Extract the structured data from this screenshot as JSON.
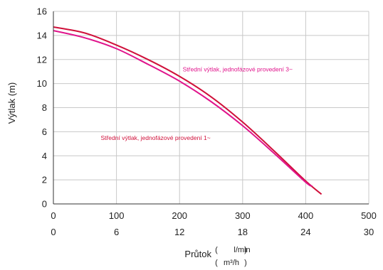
{
  "chart_data": {
    "type": "line",
    "title": "",
    "xlabel": "Průtok",
    "x_units": [
      "l/min",
      "m³/h"
    ],
    "ylabel": "Výtlak (m)",
    "xlim": [
      0,
      500
    ],
    "ylim": [
      0,
      16
    ],
    "x_ticks": [
      0,
      100,
      200,
      300,
      400,
      500
    ],
    "x_tick_labels": [
      "0",
      "100",
      "200",
      "300",
      "400",
      "500"
    ],
    "x2_tick_labels": [
      "0",
      "6",
      "12",
      "18",
      "24",
      "30"
    ],
    "y_ticks": [
      0,
      2,
      4,
      6,
      8,
      10,
      12,
      14,
      16
    ],
    "y_tick_labels": [
      "0",
      "2",
      "4",
      "6",
      "8",
      "10",
      "12",
      "14",
      "16"
    ],
    "grid": true,
    "series": [
      {
        "color": "#d0103a",
        "x": [
          0,
          50,
          100,
          150,
          200,
          250,
          300,
          350,
          400,
          425
        ],
        "y": [
          14.7,
          14.2,
          13.2,
          12.0,
          10.6,
          8.9,
          6.8,
          4.4,
          1.9,
          0.8
        ]
      },
      {
        "color": "#e0148c",
        "x": [
          0,
          50,
          100,
          150,
          200,
          250,
          300,
          350,
          400,
          410
        ],
        "y": [
          14.4,
          13.8,
          12.9,
          11.6,
          10.2,
          8.5,
          6.5,
          4.2,
          1.8,
          1.5
        ]
      }
    ],
    "annotations": [
      {
        "text": "Střední výtlak, jednofázové provedení 3~",
        "x": 205,
        "y": 11.0,
        "color": "#e0148c"
      },
      {
        "text": "Střední výtlak, jednofázové provedení 1~",
        "x": 75,
        "y": 5.3,
        "color": "#d0103a"
      }
    ]
  }
}
